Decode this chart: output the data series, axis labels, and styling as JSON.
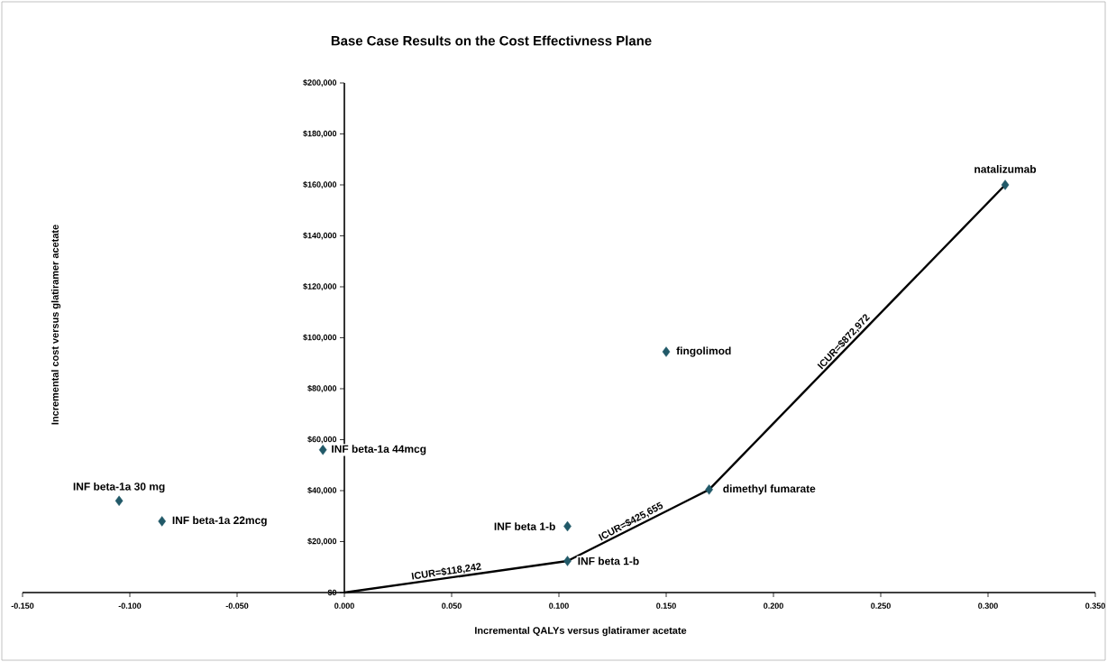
{
  "chart_data": {
    "type": "scatter",
    "title": "Base Case Results on the Cost Effectivness Plane",
    "xlabel": "Incremental QALYs versus glatiramer acetate",
    "ylabel": "Incremental cost versus glatiramer acetate",
    "series": [
      {
        "color": "#215968",
        "marker": "diamond",
        "x": [
          -0.105,
          -0.085,
          -0.01,
          0.104,
          0.104,
          0.15,
          0.17,
          0.308
        ],
        "values": [
          36000,
          28000,
          56000,
          26000,
          12400,
          94500,
          40400,
          160000
        ]
      },
      {
        "type": "line",
        "color": "#000000",
        "x": [
          0,
          0.104,
          0.17,
          0.308
        ],
        "values": [
          0,
          12400,
          40400,
          160000
        ]
      }
    ],
    "annotations": [
      {
        "text": "INF beta-1a 30 mg",
        "x": -0.105,
        "y": 36000
      },
      {
        "text": "INF beta-1a 22mcg",
        "x": -0.085,
        "y": 28000
      },
      {
        "text": "INF beta-1a 44mcg",
        "x": -0.01,
        "y": 56000
      },
      {
        "text": "INF beta 1-b",
        "x": 0.104,
        "y": 26000
      },
      {
        "text": "INF beta 1-b",
        "x": 0.104,
        "y": 12400
      },
      {
        "text": "fingolimod",
        "x": 0.15,
        "y": 94500
      },
      {
        "text": "dimethyl fumarate",
        "x": 0.17,
        "y": 40400
      },
      {
        "text": "natalizumab",
        "x": 0.308,
        "y": 160000
      },
      {
        "text": "ICUR=$118,242",
        "x": 0.048,
        "y": 5700
      },
      {
        "text": "ICUR=$425,655",
        "x": 0.135,
        "y": 25600
      },
      {
        "text": "ICUR=$872,972",
        "x": 0.235,
        "y": 96700
      }
    ],
    "xlim": [
      -0.15,
      0.35
    ],
    "ylim": [
      0,
      200000
    ],
    "xticks": [
      {
        "value": -0.15,
        "label": "-0.150"
      },
      {
        "value": -0.1,
        "label": "-0.100"
      },
      {
        "value": -0.05,
        "label": "-0.050"
      },
      {
        "value": 0,
        "label": "0.000"
      },
      {
        "value": 0.05,
        "label": "0.050"
      },
      {
        "value": 0.1,
        "label": "0.100"
      },
      {
        "value": 0.15,
        "label": "0.150"
      },
      {
        "value": 0.2,
        "label": "0.200"
      },
      {
        "value": 0.25,
        "label": "0.250"
      },
      {
        "value": 0.3,
        "label": "0.300"
      },
      {
        "value": 0.35,
        "label": "0.350"
      }
    ],
    "yticks": [
      {
        "value": 0,
        "label": "$0"
      },
      {
        "value": 20000,
        "label": "$20,000"
      },
      {
        "value": 40000,
        "label": "$40,000"
      },
      {
        "value": 60000,
        "label": "$60,000"
      },
      {
        "value": 80000,
        "label": "$80,000"
      },
      {
        "value": 100000,
        "label": "$100,000"
      },
      {
        "value": 120000,
        "label": "$120,000"
      },
      {
        "value": 140000,
        "label": "$140,000"
      },
      {
        "value": 160000,
        "label": "$160,000"
      },
      {
        "value": 180000,
        "label": "$180,000"
      },
      {
        "value": 200000,
        "label": "$200,000"
      }
    ],
    "grid": false
  }
}
